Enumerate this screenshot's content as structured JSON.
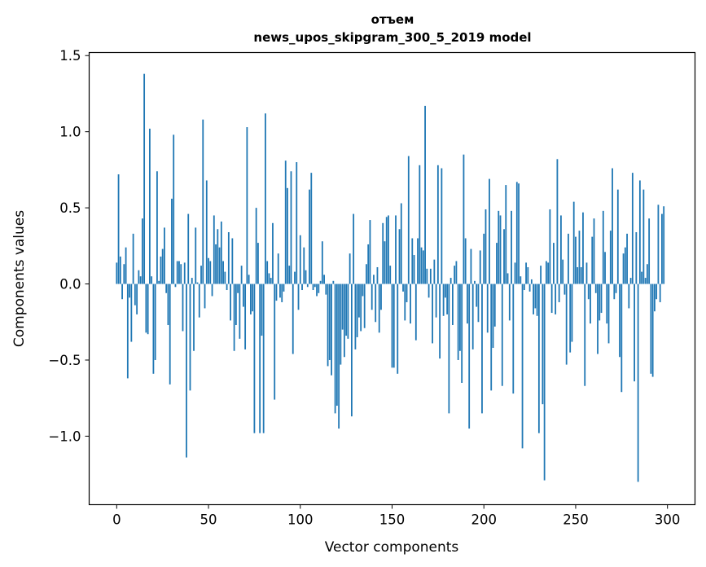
{
  "chart_data": {
    "type": "bar",
    "title_line1": "отъем",
    "title_line2": "news_upos_skipgram_300_5_2019 model",
    "xlabel": "Vector components",
    "ylabel": "Components values",
    "xlim": [
      -15,
      315
    ],
    "ylim": [
      -1.45,
      1.52
    ],
    "xticks": [
      0,
      50,
      100,
      150,
      200,
      250,
      300
    ],
    "xtick_labels": [
      "0",
      "50",
      "100",
      "150",
      "200",
      "250",
      "300"
    ],
    "yticks": [
      -1.0,
      -0.5,
      0.0,
      0.5,
      1.0,
      1.5
    ],
    "ytick_labels": [
      "−1.0",
      "−0.5",
      "0.0",
      "0.5",
      "1.0",
      "1.5"
    ],
    "bar_color": "#1f77b4",
    "values": [
      0.14,
      0.72,
      0.18,
      -0.1,
      0.13,
      0.24,
      -0.62,
      -0.09,
      -0.38,
      0.33,
      -0.14,
      -0.2,
      0.09,
      0.05,
      0.43,
      1.38,
      -0.32,
      -0.33,
      1.02,
      0.05,
      -0.59,
      -0.5,
      0.74,
      0.02,
      0.18,
      0.23,
      0.37,
      -0.06,
      -0.27,
      -0.66,
      0.56,
      0.98,
      -0.02,
      0.15,
      0.15,
      0.13,
      -0.31,
      0.14,
      -1.14,
      0.46,
      -0.7,
      0.04,
      -0.44,
      0.37,
      0.01,
      -0.22,
      0.12,
      1.08,
      -0.16,
      0.68,
      0.17,
      0.15,
      -0.08,
      0.45,
      0.26,
      0.36,
      0.24,
      0.41,
      0.15,
      0.08,
      -0.04,
      0.34,
      -0.24,
      0.3,
      -0.44,
      -0.27,
      -0.06,
      -0.36,
      0.12,
      -0.15,
      -0.43,
      1.03,
      0.06,
      -0.2,
      -0.18,
      -0.98,
      0.5,
      0.27,
      -0.98,
      -0.34,
      -0.98,
      1.12,
      0.15,
      0.07,
      0.04,
      0.4,
      -0.76,
      -0.11,
      0.2,
      -0.09,
      -0.12,
      -0.05,
      0.81,
      0.63,
      0.12,
      0.74,
      -0.46,
      0.08,
      0.8,
      -0.17,
      0.32,
      -0.04,
      0.24,
      0.09,
      -0.02,
      0.62,
      0.73,
      -0.04,
      -0.02,
      -0.08,
      -0.06,
      0.02,
      0.28,
      0.06,
      -0.07,
      -0.54,
      -0.5,
      -0.6,
      0.02,
      -0.85,
      -0.8,
      -0.95,
      -0.53,
      -0.3,
      -0.48,
      -0.34,
      -0.36,
      0.2,
      -0.87,
      0.46,
      -0.43,
      -0.35,
      -0.22,
      -0.31,
      -0.08,
      -0.29,
      0.13,
      0.26,
      0.42,
      -0.17,
      0.06,
      -0.25,
      0.11,
      -0.32,
      -0.17,
      0.4,
      0.28,
      0.44,
      0.45,
      0.12,
      -0.55,
      -0.55,
      0.45,
      -0.59,
      0.36,
      0.53,
      -0.05,
      -0.24,
      -0.12,
      0.84,
      -0.26,
      0.3,
      0.19,
      -0.37,
      0.3,
      0.78,
      0.24,
      0.22,
      1.17,
      0.1,
      -0.09,
      0.1,
      -0.39,
      0.16,
      -0.22,
      0.78,
      -0.49,
      0.76,
      -0.21,
      -0.09,
      -0.2,
      -0.85,
      0.04,
      -0.27,
      0.12,
      0.15,
      -0.5,
      -0.44,
      -0.65,
      0.85,
      0.3,
      -0.26,
      -0.95,
      0.23,
      -0.43,
      0.02,
      -0.15,
      -0.25,
      0.22,
      -0.85,
      0.33,
      0.49,
      -0.32,
      0.69,
      -0.7,
      -0.42,
      -0.28,
      0.27,
      0.48,
      0.45,
      -0.67,
      0.36,
      0.65,
      0.07,
      -0.24,
      0.48,
      -0.72,
      0.14,
      0.67,
      0.66,
      0.05,
      -1.08,
      -0.04,
      0.14,
      0.11,
      -0.05,
      0.03,
      -0.2,
      -0.16,
      -0.21,
      -0.98,
      0.12,
      -0.79,
      -1.29,
      0.15,
      0.14,
      0.49,
      -0.19,
      0.27,
      -0.2,
      0.82,
      -0.12,
      0.45,
      0.16,
      -0.07,
      -0.53,
      0.33,
      -0.45,
      -0.38,
      0.54,
      0.31,
      0.11,
      0.35,
      0.11,
      0.47,
      -0.67,
      0.14,
      -0.1,
      -0.26,
      0.31,
      0.43,
      -0.06,
      -0.46,
      -0.24,
      -0.19,
      0.48,
      0.21,
      -0.26,
      -0.39,
      0.35,
      0.76,
      -0.1,
      -0.06,
      0.62,
      -0.48,
      -0.71,
      0.2,
      0.24,
      0.33,
      -0.16,
      0.04,
      0.73,
      -0.64,
      0.34,
      -1.3,
      0.68,
      0.08,
      0.62,
      0.04,
      0.13,
      0.43,
      -0.59,
      -0.61,
      -0.18,
      -0.1,
      0.52,
      -0.12,
      0.46,
      0.51
    ]
  }
}
